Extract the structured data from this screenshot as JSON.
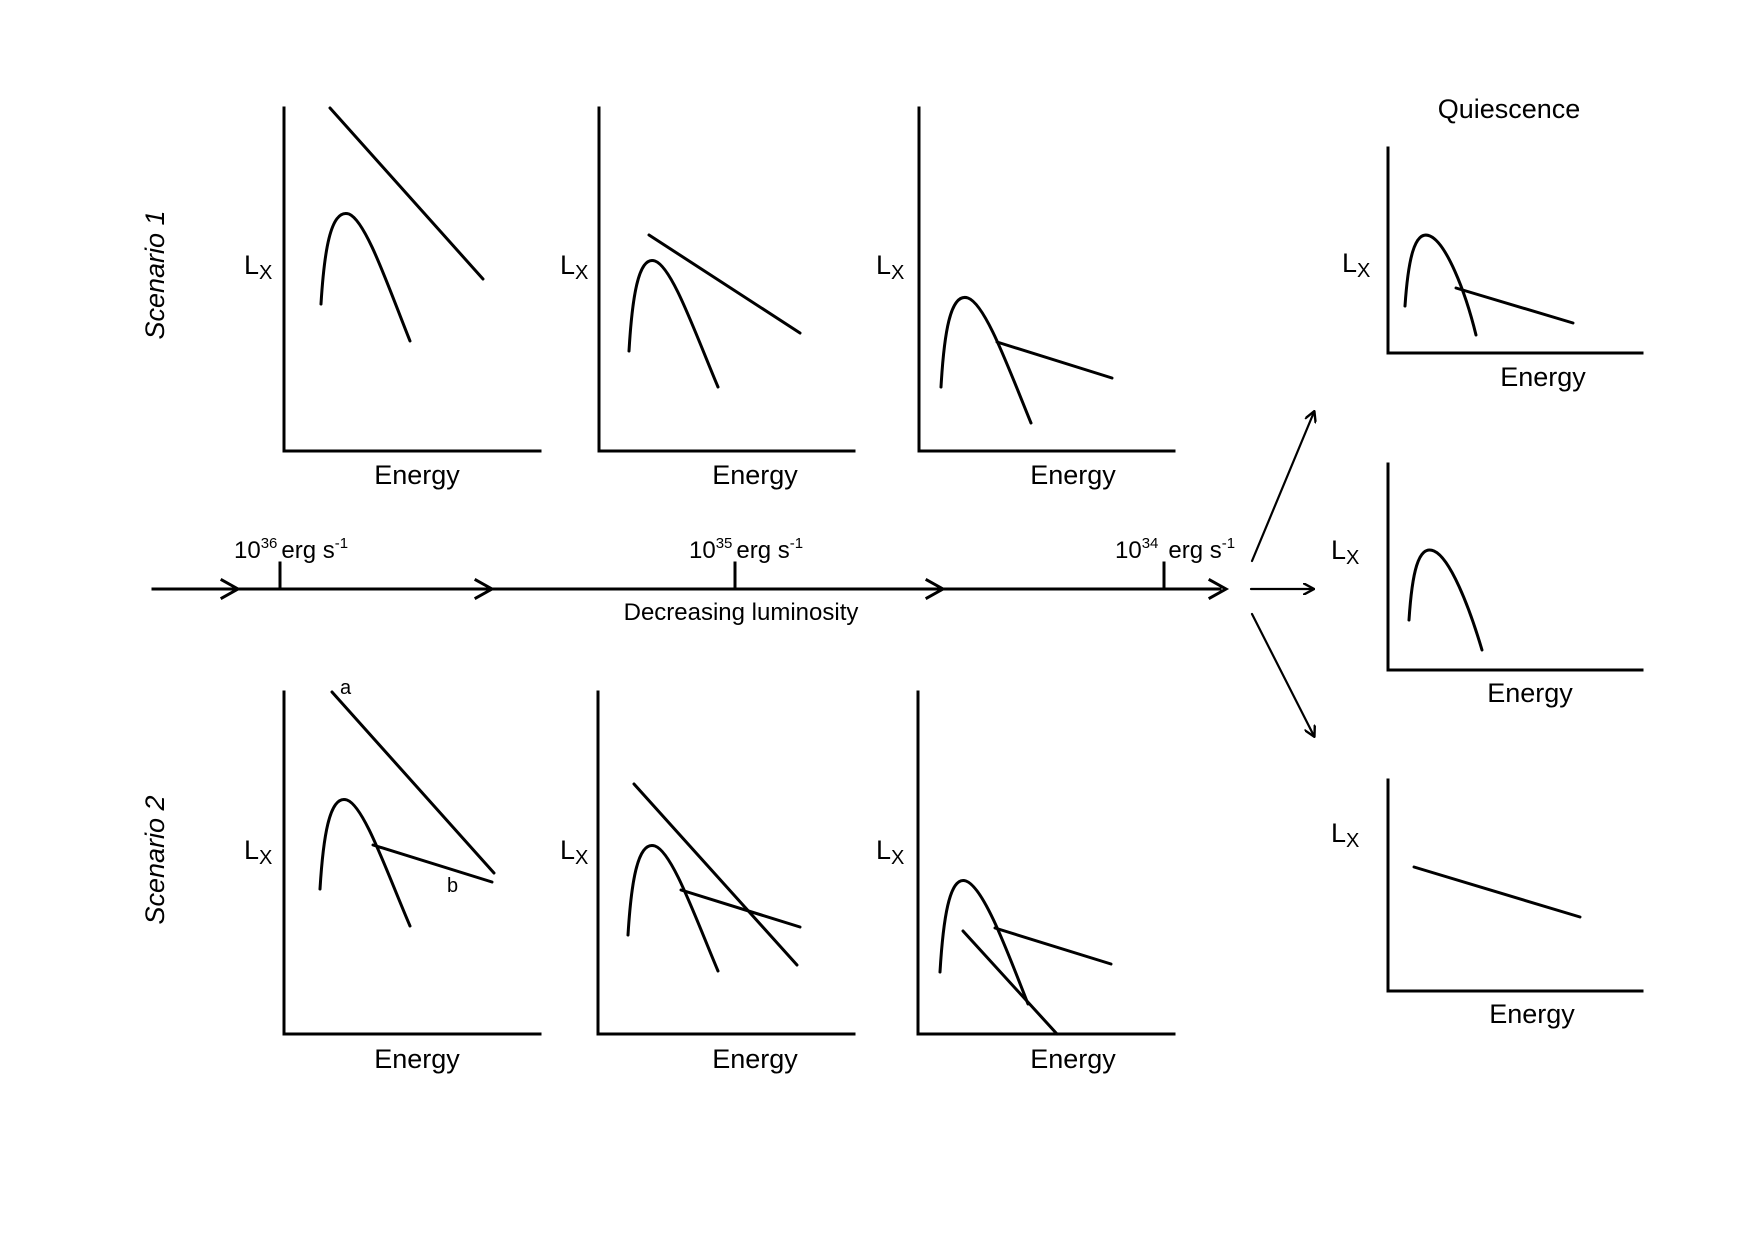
{
  "axis_labels": {
    "y_main": "L",
    "y_sub": "X",
    "x": "Energy"
  },
  "scenarios": {
    "one": "Scenario 1",
    "two": "Scenario 2"
  },
  "quiescence_title": "Quiescence",
  "luminosity_axis": {
    "caption": "Decreasing luminosity",
    "ticks": [
      {
        "base": "10",
        "exp": "36",
        "unit": "erg s",
        "unit_exp": "-1"
      },
      {
        "base": "10",
        "exp": "35",
        "unit": "erg s",
        "unit_exp": "-1"
      },
      {
        "base": "10",
        "exp": "34",
        "unit": "erg s",
        "unit_exp": "-1"
      }
    ]
  },
  "component_labels": {
    "a": "a",
    "b": "b"
  }
}
